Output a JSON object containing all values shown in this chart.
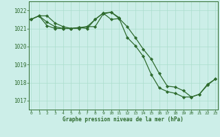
{
  "title": "Graphe pression niveau de la mer (hPa)",
  "bg_color": "#cceee8",
  "grid_color": "#aaddcc",
  "line_color": "#2d6a2d",
  "marker_color": "#2d6a2d",
  "hours": [
    0,
    1,
    2,
    3,
    4,
    5,
    6,
    7,
    8,
    9,
    10,
    11,
    12,
    13,
    14,
    15,
    16,
    17,
    18,
    19,
    20,
    21,
    22,
    23
  ],
  "line1": [
    1021.5,
    1021.7,
    1021.7,
    1021.3,
    1021.1,
    1021.0,
    1021.0,
    1021.1,
    1021.1,
    1021.8,
    1021.9,
    1021.6,
    null,
    null,
    null,
    null,
    null,
    null,
    null,
    null,
    null,
    null,
    null,
    null
  ],
  "line2": [
    1021.5,
    1021.7,
    1021.35,
    1021.1,
    1021.0,
    1021.0,
    1021.05,
    1021.1,
    1021.5,
    1021.85,
    1021.9,
    1021.55,
    1021.1,
    1020.5,
    1019.85,
    1019.3,
    1018.5,
    1017.8,
    1017.75,
    1017.55,
    1017.2,
    1017.35,
    1017.85,
    1018.2
  ],
  "line3": [
    1021.5,
    1021.7,
    1021.15,
    1021.0,
    1021.0,
    1021.0,
    1021.05,
    1021.0,
    1021.5,
    1021.85,
    1021.5,
    1021.55,
    1020.5,
    1020.05,
    1019.45,
    1018.45,
    1017.7,
    1017.5,
    1017.4,
    1017.2,
    1017.2,
    1017.35,
    1017.9,
    1018.2
  ],
  "ylim": [
    1016.5,
    1022.5
  ],
  "yticks": [
    1017,
    1018,
    1019,
    1020,
    1021,
    1022
  ],
  "xlim": [
    -0.3,
    23.3
  ],
  "xticks": [
    0,
    1,
    2,
    3,
    4,
    5,
    6,
    7,
    8,
    9,
    10,
    11,
    12,
    13,
    14,
    15,
    16,
    17,
    18,
    19,
    20,
    21,
    22,
    23
  ]
}
